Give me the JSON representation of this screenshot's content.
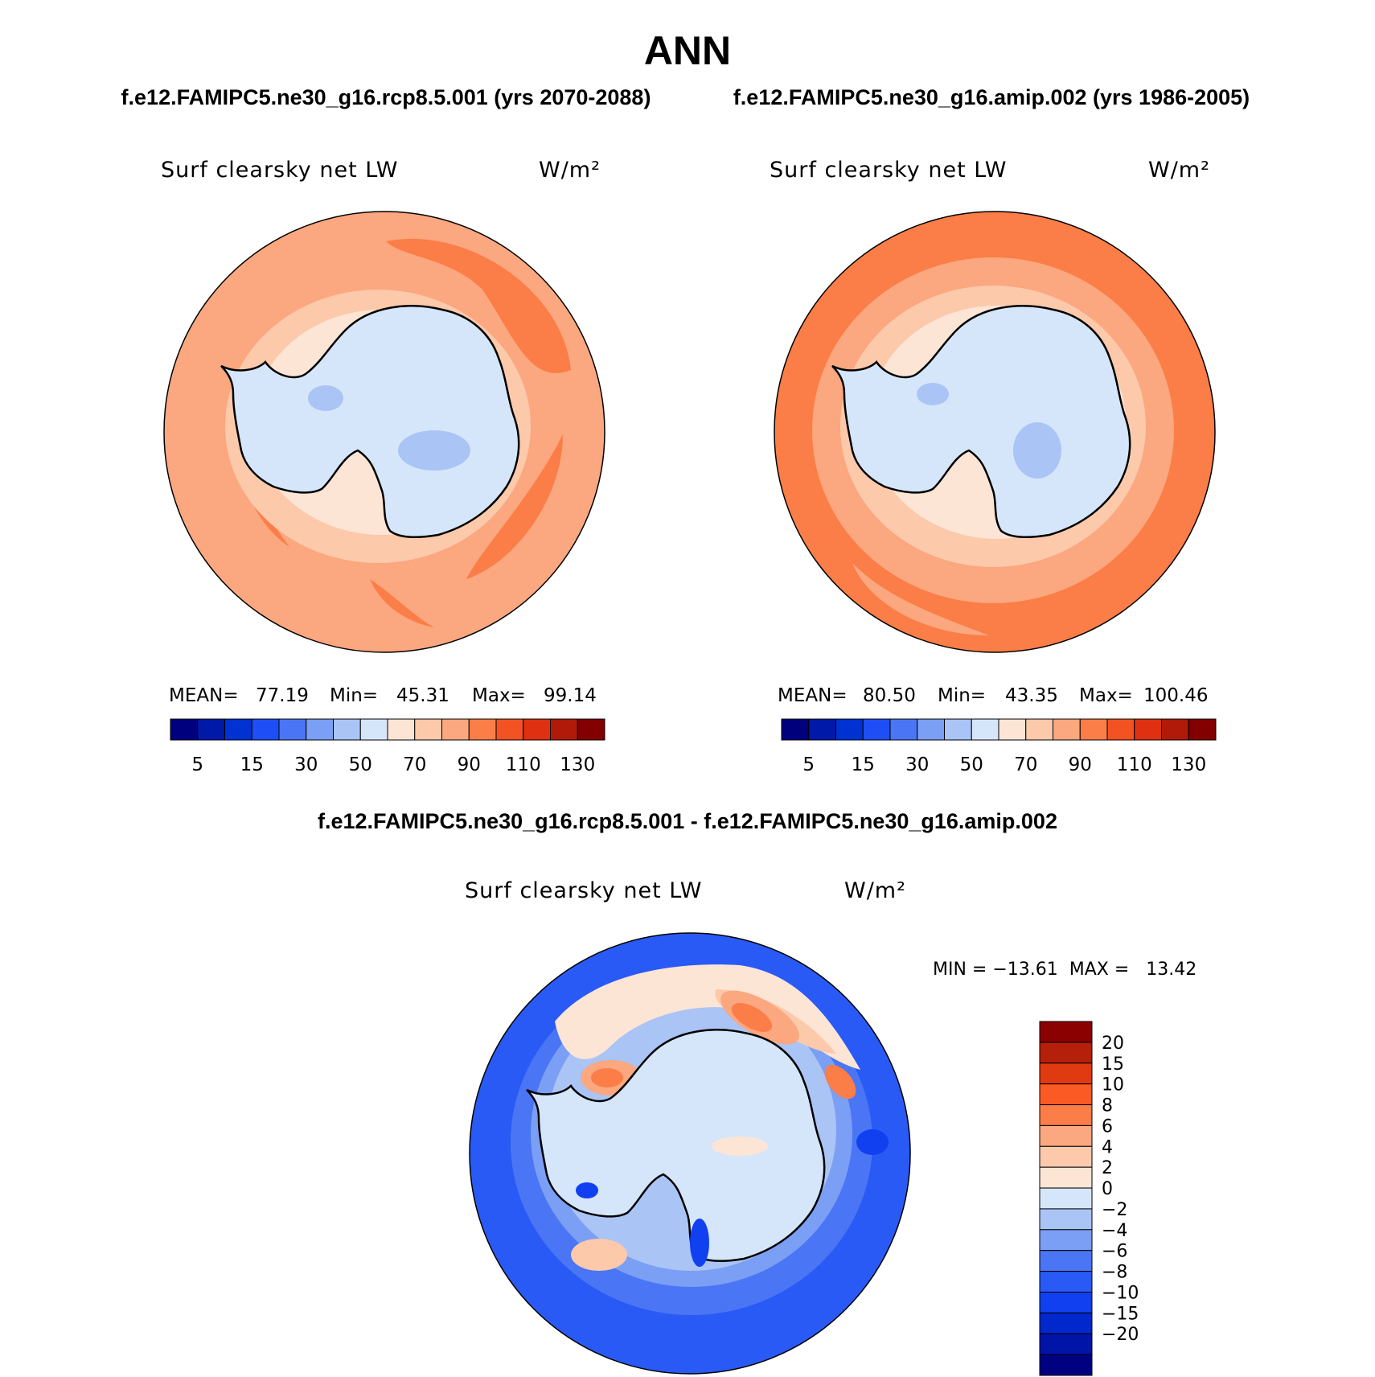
{
  "title": "ANN",
  "panels": [
    {
      "case_title": "f.e12.FAMIPC5.ne30_g16.rcp8.5.001 (yrs 2070-2088)",
      "var_label": "Surf clearsky net LW",
      "units": "W/m²",
      "stats": {
        "mean_label": "MEAN=",
        "mean": "77.19",
        "min_label": "Min=",
        "min": "45.31",
        "max_label": "Max=",
        "max": "99.14"
      }
    },
    {
      "case_title": "f.e12.FAMIPC5.ne30_g16.amip.002 (yrs 1986-2005)",
      "var_label": "Surf clearsky net LW",
      "units": "W/m²",
      "stats": {
        "mean_label": "MEAN=",
        "mean": "80.50",
        "min_label": "Min=",
        "min": "43.35",
        "max_label": "Max=",
        "max": "100.46"
      }
    }
  ],
  "colorbar_top": {
    "colors": [
      "#00007f",
      "#0019a8",
      "#0032d2",
      "#1e4ef5",
      "#4a76f5",
      "#7b9ff5",
      "#aac4f5",
      "#d6e6fa",
      "#fde5d6",
      "#fcc9ab",
      "#fba77f",
      "#fb7d47",
      "#f35222",
      "#df3011",
      "#b11a08",
      "#830000"
    ],
    "labels": [
      "5",
      "15",
      "30",
      "50",
      "70",
      "90",
      "110",
      "130"
    ]
  },
  "difference": {
    "title": "f.e12.FAMIPC5.ne30_g16.rcp8.5.001 - f.e12.FAMIPC5.ne30_g16.amip.002",
    "var_label": "Surf clearsky net LW",
    "units": "W/m²",
    "minmax": "MIN = −13.61  MAX =   13.42",
    "colorbar": {
      "colors_top_to_bottom": [
        "#8b0000",
        "#b5200b",
        "#e03a10",
        "#fb5a24",
        "#fb7d47",
        "#fba77f",
        "#fcc9ab",
        "#fde5d6",
        "#d6e6fa",
        "#aac4f5",
        "#7b9ff5",
        "#4a76f5",
        "#2a5af5",
        "#1040f0",
        "#0028cc",
        "#0014a8",
        "#000080"
      ],
      "labels_top_to_bottom": [
        "20",
        "15",
        "10",
        "8",
        "6",
        "4",
        "2",
        "0",
        "−2",
        "−4",
        "−6",
        "−8",
        "−10",
        "−15",
        "−20"
      ]
    }
  },
  "palette": {
    "ocean1": "#fba77f",
    "ocean1_hi": "#fb7d47",
    "ocean1_lo": "#fcc9ab",
    "ocean2": "#fb7d47",
    "ocean2_lo": "#fba77f",
    "land_light": "#d6e6fa",
    "land_mid": "#aac4f5",
    "coast_band": "#fde5d6",
    "diff_ocean": "#2a5af5",
    "diff_mid": "#4a76f5",
    "diff_light": "#7b9ff5"
  }
}
